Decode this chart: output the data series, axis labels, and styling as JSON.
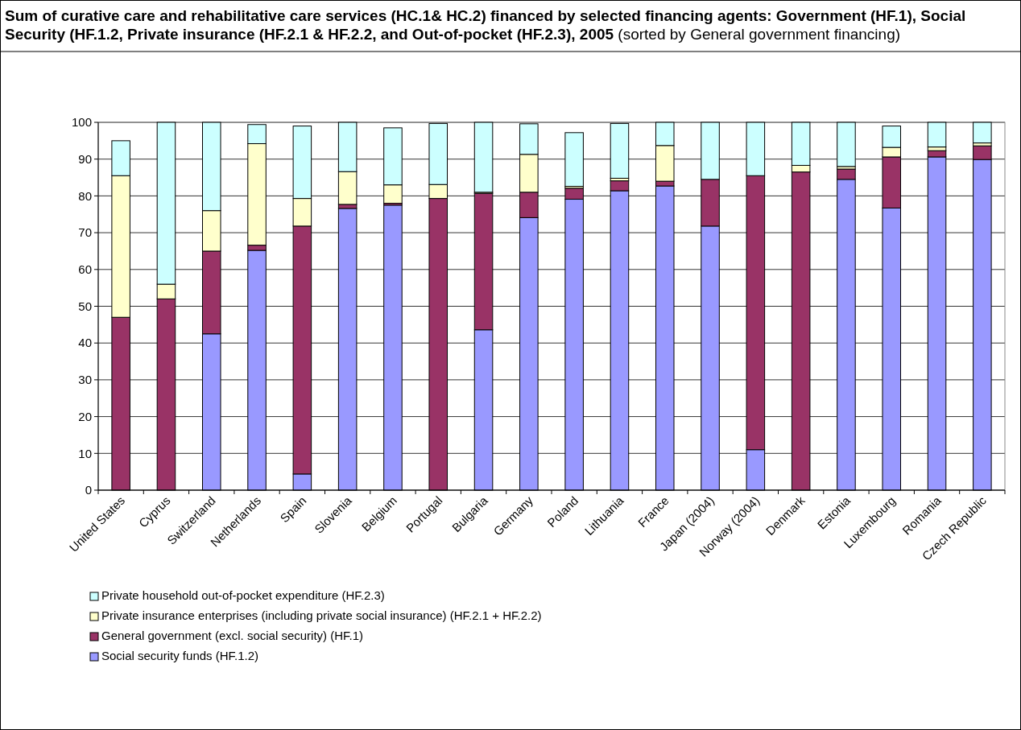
{
  "chart_data": {
    "type": "bar",
    "stacked": true,
    "title": "Sum of curative care and rehabilitative care services (HC.1& HC.2) financed by selected financing agents: Government (HF.1), Social Security (HF.1.2, Private insurance (HF.2.1 & HF.2.2, and Out-of-pocket (HF.2.3), 2005",
    "subtitle": "(sorted by General government financing)",
    "categories": [
      "United States",
      "Cyprus",
      "Switzerland",
      "Netherlands",
      "Spain",
      "Slovenia",
      "Belgium",
      "Portugal",
      "Bulgaria",
      "Germany",
      "Poland",
      "Lithuania",
      "France",
      "Japan (2004)",
      "Norway (2004)",
      "Denmark",
      "Estonia",
      "Luxembourg",
      "Romania",
      "Czech Republic"
    ],
    "series": [
      {
        "name": "Social security funds (HF.1.2)",
        "color": "#9999ff",
        "values": [
          0,
          0,
          42.5,
          65.2,
          4.4,
          76.6,
          77.5,
          null,
          43.6,
          74.1,
          79.1,
          81.4,
          82.7,
          71.8,
          11,
          0,
          84.5,
          76.7,
          90.6,
          89.9
        ]
      },
      {
        "name": "General government (excl. social security) (HF.1)",
        "color": "#993366",
        "values": [
          47,
          52,
          22.5,
          1.4,
          67.4,
          1.1,
          0.5,
          79.3,
          37.1,
          6.9,
          3,
          2.7,
          1.3,
          12.7,
          74.5,
          86.5,
          2.8,
          13.9,
          1.7,
          3.7
        ]
      },
      {
        "name": "Private insurance enterprises (including private social insurance) (HF.2.1 + HF.2.2)",
        "color": "#ffffcc",
        "values": [
          38.5,
          4,
          11,
          27.6,
          7.5,
          8.9,
          5,
          3.8,
          0.3,
          10.3,
          0.5,
          0.7,
          9.7,
          0,
          0,
          1.8,
          0.7,
          2.6,
          1,
          0.8
        ]
      },
      {
        "name": "Private household out-of-pocket expenditure (HF.2.3)",
        "color": "#ccffff",
        "values": [
          9.5,
          44,
          24,
          5.2,
          19.7,
          13.4,
          15.5,
          16.6,
          19,
          8.3,
          14.6,
          14.9,
          6.3,
          15.5,
          14.5,
          11.7,
          12,
          5.8,
          6.7,
          5.6
        ]
      }
    ],
    "ylim": [
      0,
      100
    ],
    "yticks": [
      0,
      10,
      20,
      30,
      40,
      50,
      60,
      70,
      80,
      90,
      100
    ],
    "grid": "y",
    "legend": "bottom"
  }
}
